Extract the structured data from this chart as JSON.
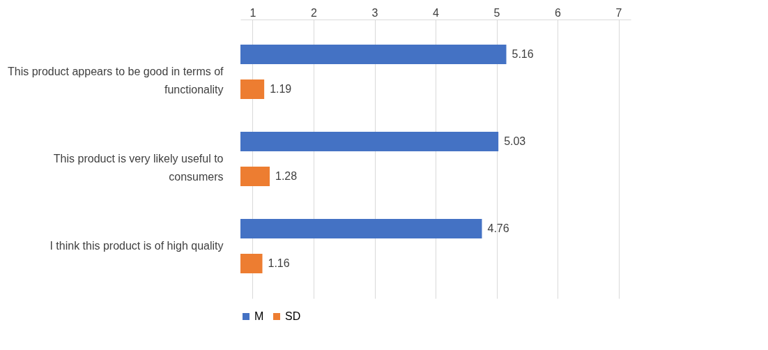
{
  "chart_data": {
    "type": "bar",
    "orientation": "horizontal",
    "categories": [
      "This product appears to be good in terms of functionality",
      "This product is very likely useful to consumers",
      "I think this product is of high quality"
    ],
    "series": [
      {
        "name": "M",
        "color": "#4472c4",
        "values": [
          5.16,
          5.03,
          4.76
        ]
      },
      {
        "name": "SD",
        "color": "#ed7d31",
        "values": [
          1.19,
          1.28,
          1.16
        ]
      }
    ],
    "xlim": [
      0.8,
      7.2
    ],
    "xticks": [
      1,
      2,
      3,
      4,
      5,
      6,
      7
    ],
    "grid": "x",
    "legend": "bottom",
    "data_labels": true
  }
}
